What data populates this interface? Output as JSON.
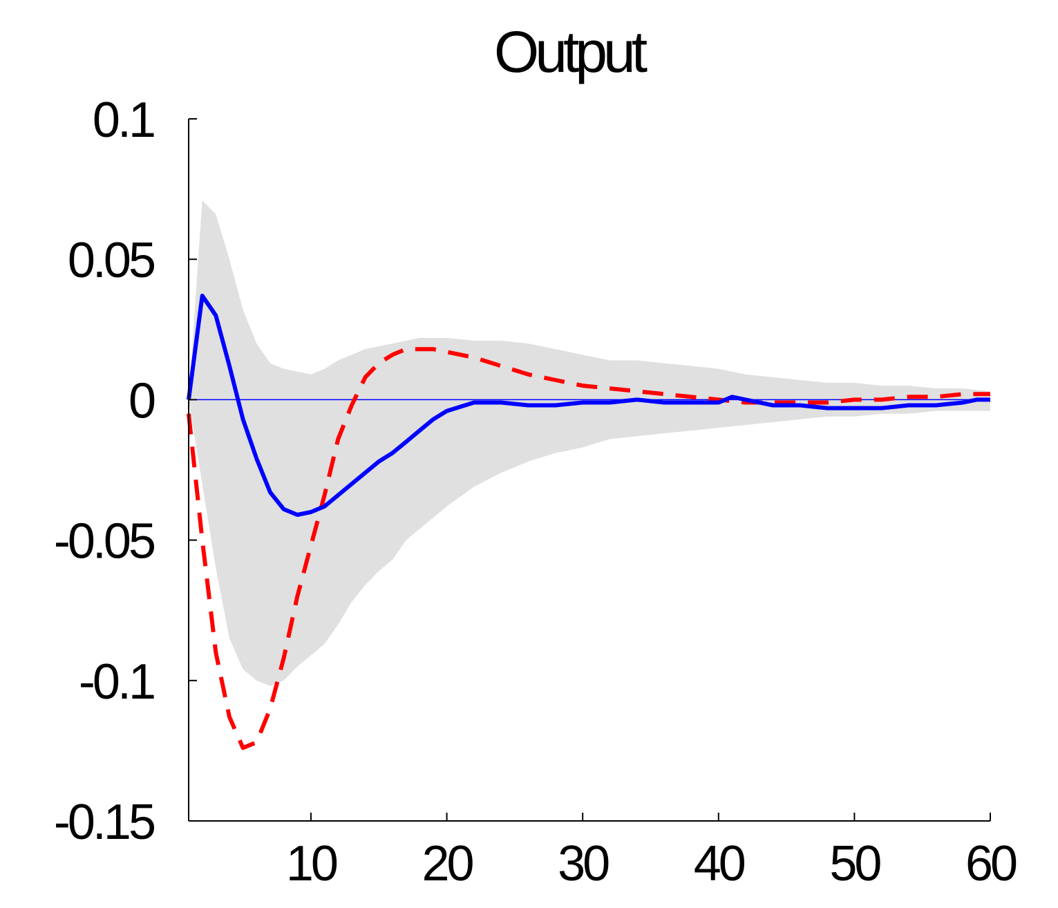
{
  "chart_data": {
    "type": "line",
    "title": "Output",
    "xlabel": "",
    "ylabel": "",
    "xlim": [
      1,
      60
    ],
    "ylim": [
      -0.15,
      0.1
    ],
    "xticks": [
      10,
      20,
      30,
      40,
      50,
      60
    ],
    "xtick_labels": [
      "10",
      "20",
      "30",
      "40",
      "50",
      "60"
    ],
    "yticks": [
      0.1,
      0.05,
      0,
      -0.05,
      -0.1,
      -0.15
    ],
    "ytick_labels": [
      "0.1",
      "0.05",
      "0",
      "-0.05",
      "-0.1",
      "-0.15"
    ],
    "grid": false,
    "legend": "none",
    "zero_line": {
      "y": 0,
      "color": "#0000ff"
    },
    "band": {
      "color": "#e0e0e0",
      "x": [
        1,
        2,
        3,
        4,
        5,
        6,
        7,
        8,
        9,
        10,
        11,
        12,
        13,
        14,
        15,
        16,
        17,
        18,
        19,
        20,
        22,
        24,
        26,
        28,
        30,
        32,
        34,
        36,
        38,
        40,
        42,
        44,
        46,
        48,
        50,
        52,
        54,
        56,
        58,
        60
      ],
      "upper": [
        0.0,
        0.071,
        0.066,
        0.05,
        0.032,
        0.02,
        0.013,
        0.011,
        0.01,
        0.009,
        0.011,
        0.014,
        0.016,
        0.018,
        0.019,
        0.02,
        0.021,
        0.022,
        0.022,
        0.022,
        0.021,
        0.021,
        0.02,
        0.018,
        0.016,
        0.014,
        0.014,
        0.013,
        0.012,
        0.011,
        0.009,
        0.008,
        0.007,
        0.006,
        0.006,
        0.005,
        0.005,
        0.004,
        0.004,
        0.003
      ],
      "lower": [
        0.0,
        -0.03,
        -0.06,
        -0.085,
        -0.096,
        -0.1,
        -0.102,
        -0.1,
        -0.095,
        -0.091,
        -0.087,
        -0.08,
        -0.072,
        -0.066,
        -0.061,
        -0.057,
        -0.05,
        -0.046,
        -0.042,
        -0.038,
        -0.031,
        -0.026,
        -0.022,
        -0.019,
        -0.017,
        -0.014,
        -0.013,
        -0.012,
        -0.011,
        -0.01,
        -0.009,
        -0.008,
        -0.007,
        -0.006,
        -0.006,
        -0.005,
        -0.005,
        -0.004,
        -0.004,
        -0.004
      ]
    },
    "series": [
      {
        "color": "#0000ff",
        "style": "solid",
        "x": [
          1,
          2,
          3,
          4,
          5,
          6,
          7,
          8,
          9,
          10,
          11,
          12,
          13,
          14,
          15,
          16,
          17,
          18,
          19,
          20,
          22,
          24,
          26,
          28,
          30,
          32,
          34,
          36,
          38,
          40,
          41,
          42,
          44,
          46,
          48,
          50,
          52,
          54,
          56,
          58,
          59,
          60
        ],
        "values": [
          0.0,
          0.037,
          0.03,
          0.012,
          -0.007,
          -0.021,
          -0.033,
          -0.039,
          -0.041,
          -0.04,
          -0.038,
          -0.034,
          -0.03,
          -0.026,
          -0.022,
          -0.019,
          -0.015,
          -0.011,
          -0.007,
          -0.004,
          -0.001,
          -0.001,
          -0.002,
          -0.002,
          -0.001,
          -0.001,
          0.0,
          -0.001,
          -0.001,
          -0.001,
          0.001,
          0.0,
          -0.002,
          -0.002,
          -0.003,
          -0.003,
          -0.003,
          -0.002,
          -0.002,
          -0.001,
          0.0,
          0.0
        ]
      },
      {
        "color": "#ff0000",
        "style": "dashed",
        "x": [
          1,
          2,
          3,
          4,
          5,
          6,
          7,
          8,
          9,
          10,
          11,
          12,
          13,
          14,
          15,
          16,
          17,
          18,
          19,
          20,
          22,
          24,
          26,
          28,
          30,
          32,
          34,
          36,
          38,
          40,
          42,
          44,
          46,
          48,
          50,
          52,
          54,
          56,
          58,
          60
        ],
        "values": [
          -0.005,
          -0.05,
          -0.09,
          -0.113,
          -0.124,
          -0.122,
          -0.11,
          -0.092,
          -0.07,
          -0.052,
          -0.034,
          -0.014,
          -0.002,
          0.008,
          0.013,
          0.016,
          0.018,
          0.018,
          0.018,
          0.017,
          0.015,
          0.012,
          0.009,
          0.007,
          0.005,
          0.004,
          0.003,
          0.002,
          0.001,
          0.0,
          -0.001,
          -0.001,
          -0.001,
          -0.001,
          0.0,
          0.0,
          0.001,
          0.001,
          0.002,
          0.002
        ]
      }
    ]
  }
}
